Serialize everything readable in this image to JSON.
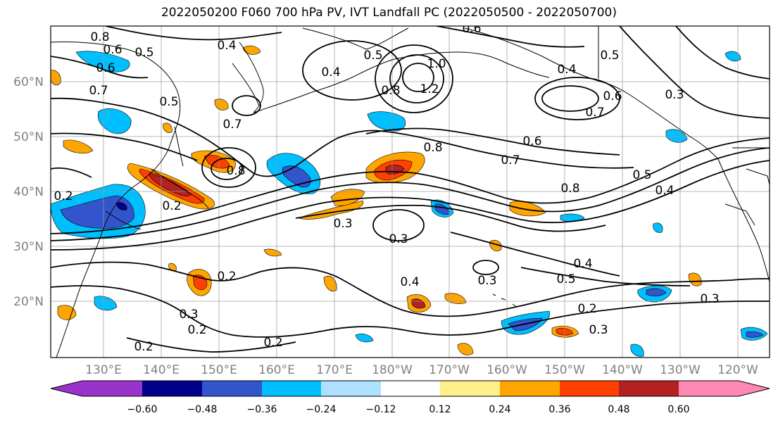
{
  "title": "2022050200 F060 700 hPa PV, IVT Landfall PC (2022050500 - 2022050700)",
  "map": {
    "lat_labels": [
      "60°N",
      "50°N",
      "40°N",
      "30°N",
      "20°N"
    ],
    "lon_labels": [
      "130°E",
      "140°E",
      "150°E",
      "160°E",
      "170°E",
      "180°W",
      "170°W",
      "160°W",
      "150°W",
      "140°W",
      "130°W",
      "120°W"
    ],
    "label_color": "#808080",
    "contour_labels": [
      "0.8",
      "0.6",
      "0.5",
      "0.4",
      "0.6",
      "0.7",
      "0.8",
      "0.5",
      "0.7",
      "0.2",
      "0.2",
      "0.5",
      "0.4",
      "1.0",
      "1.2",
      "0.8",
      "0.6",
      "0.4",
      "0.5",
      "0.7",
      "0.6",
      "0.3",
      "0.8",
      "0.7",
      "0.6",
      "0.5",
      "0.4",
      "0.8",
      "0.3",
      "0.3",
      "0.4",
      "0.5",
      "0.3",
      "0.4",
      "0.2",
      "0.3",
      "0.2",
      "0.3",
      "0.2",
      "0.2",
      "0.2",
      "0.3"
    ],
    "shading": {
      "positive": [
        "#fff08a",
        "#ffa500",
        "#ff4000",
        "#b22222",
        "#ff88b4"
      ],
      "negative": [
        "#b0e0ff",
        "#00bfff",
        "#3355cc",
        "#000088",
        "#9933cc"
      ]
    }
  },
  "colorbar": {
    "colors": [
      "#9933cc",
      "#000088",
      "#3355cc",
      "#00bfff",
      "#b0e0ff",
      "#ffffff",
      "#fff08a",
      "#ffa500",
      "#ff4000",
      "#b22222",
      "#ff88b4"
    ],
    "tick_labels": [
      "−0.60",
      "−0.48",
      "−0.36",
      "−0.24",
      "−0.12",
      "0.12",
      "0.24",
      "0.36",
      "0.48",
      "0.60"
    ]
  }
}
